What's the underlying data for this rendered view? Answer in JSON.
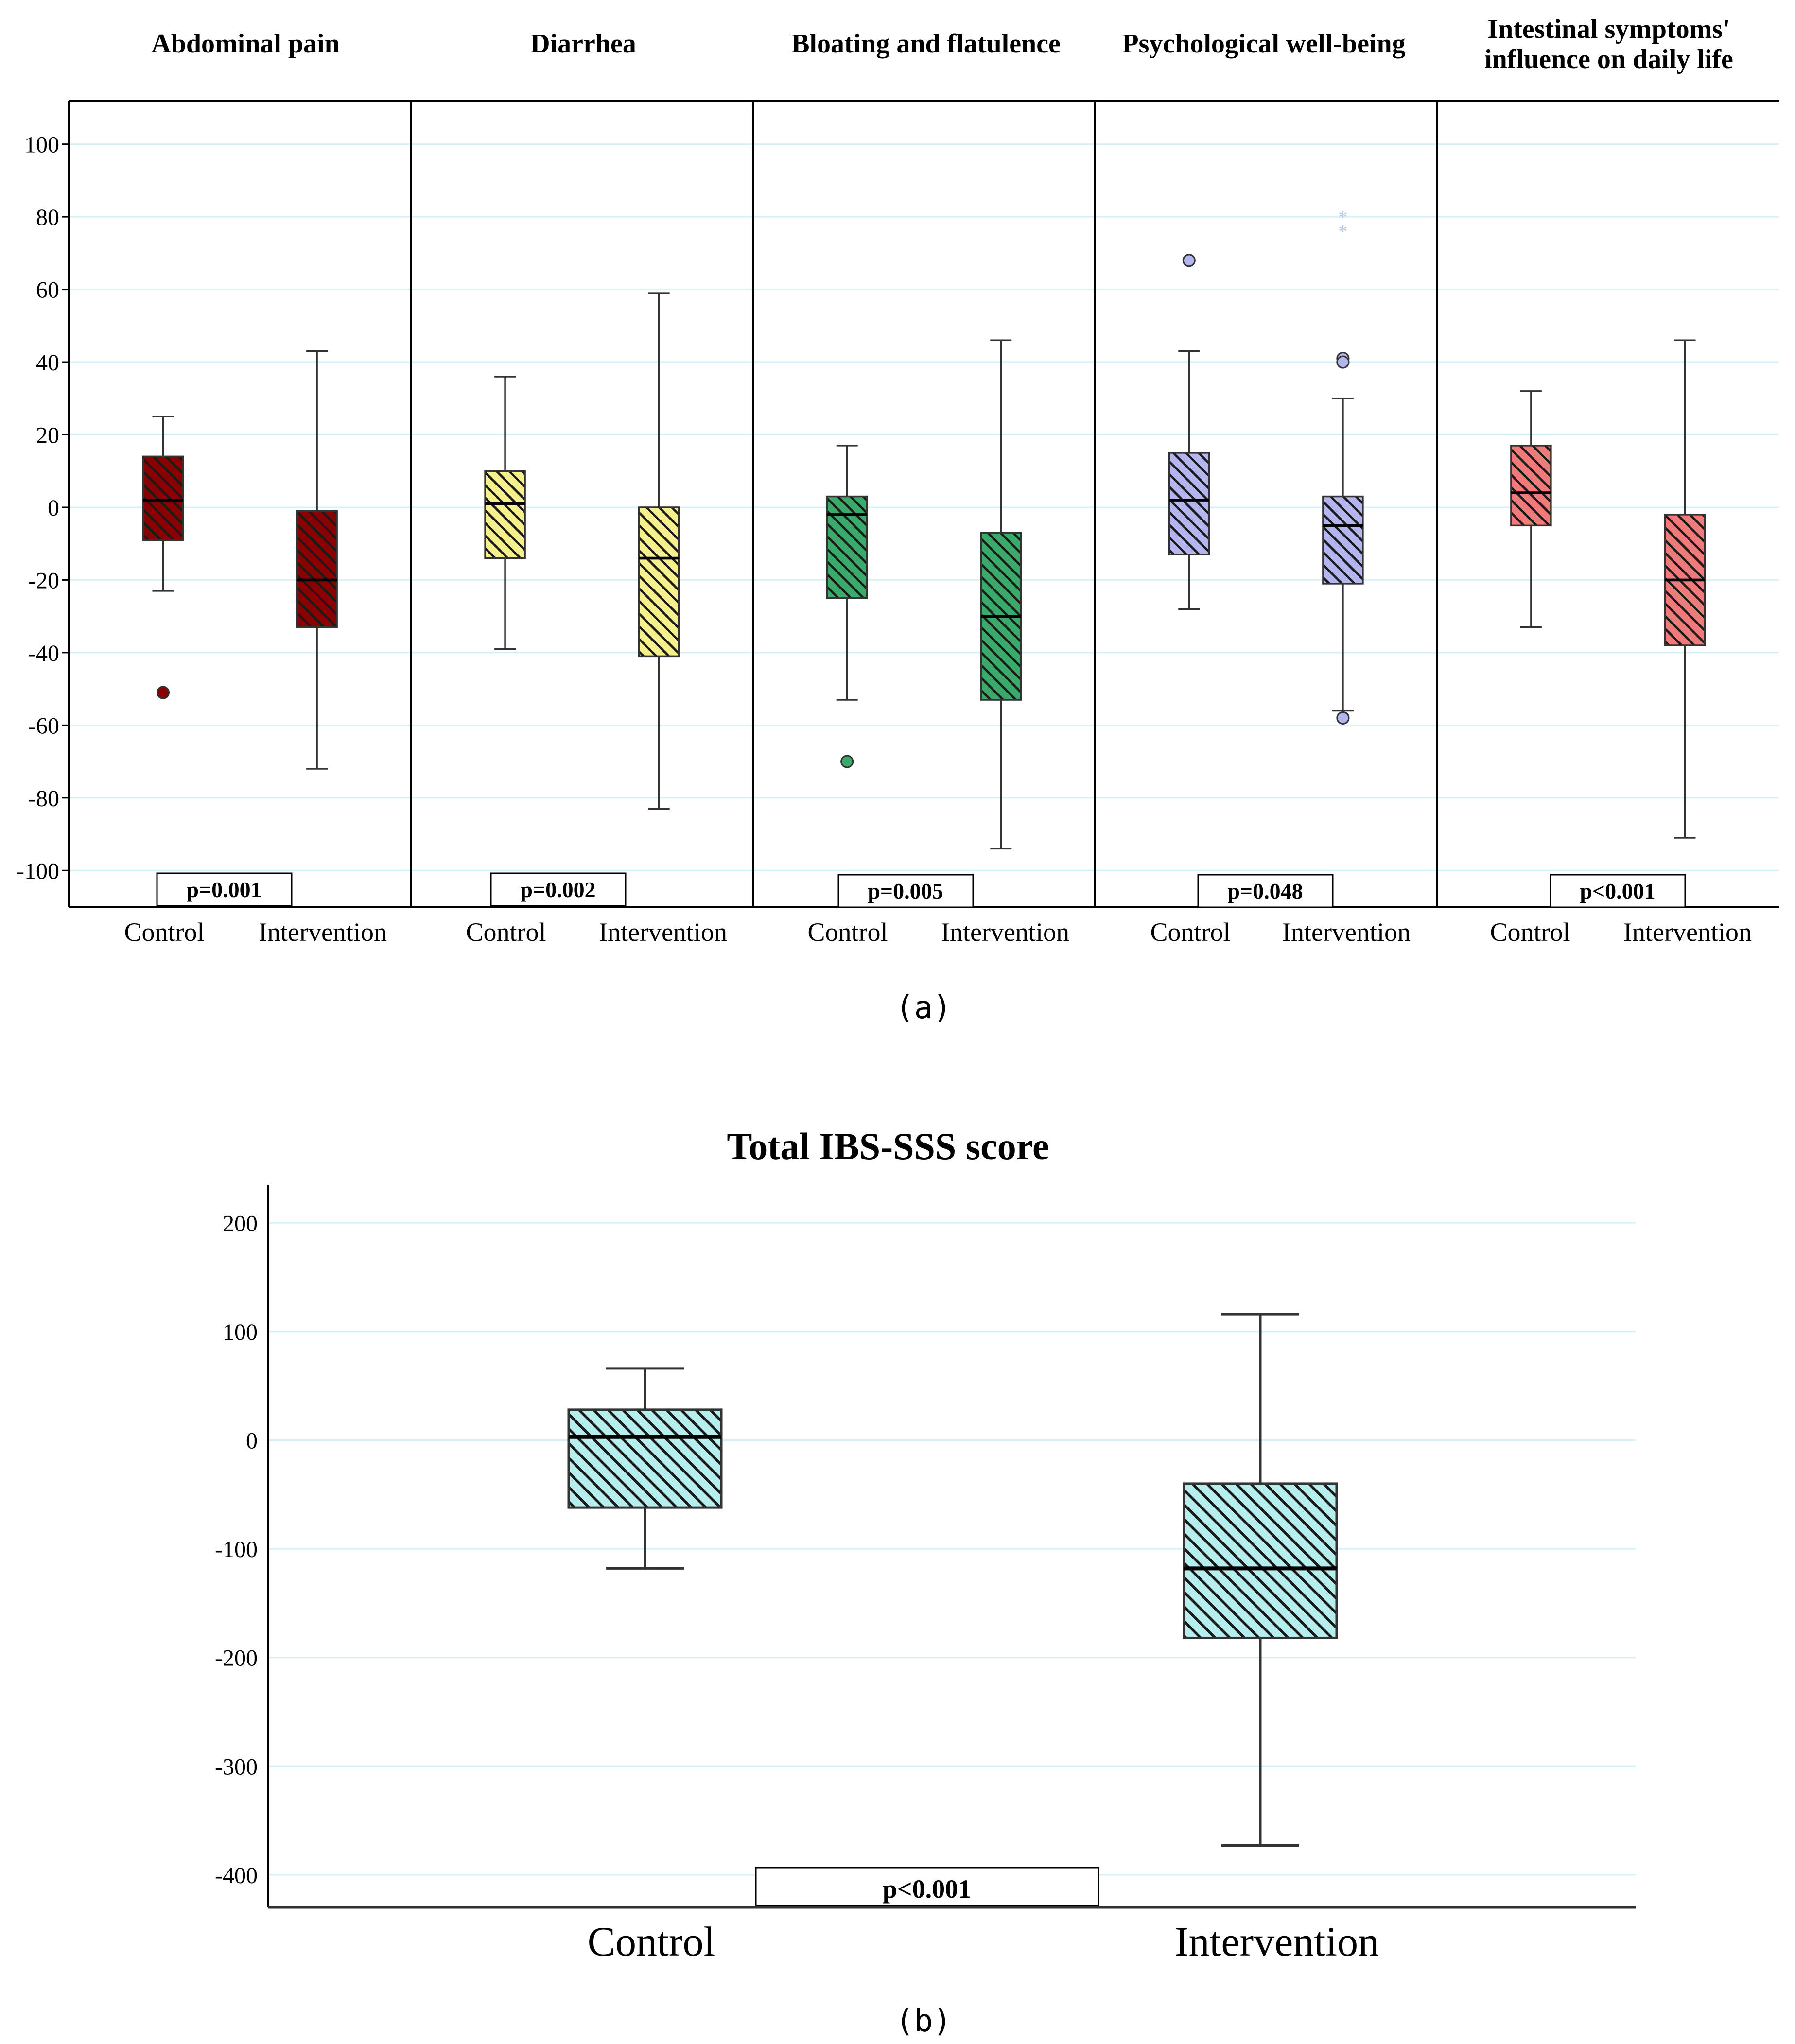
{
  "chart_data": [
    {
      "type": "boxplot",
      "caption": "(a)",
      "ylim": [
        -110,
        112
      ],
      "yticks": [
        "100",
        "80",
        "60",
        "40",
        "20",
        "0",
        "-20",
        "-40",
        "-60",
        "-80",
        "-100"
      ],
      "grid": true,
      "categories": [
        "Control",
        "Intervention"
      ],
      "panels": [
        {
          "title": [
            "Abdominal pain"
          ],
          "color": "#8b0000",
          "p_value": "p=0.001",
          "groups": [
            {
              "name": "Control",
              "min": -23,
              "q1": -9,
              "median": 2,
              "q3": 14,
              "max": 25,
              "outliers": [
                {
                  "value": -51,
                  "marker": "circle"
                }
              ]
            },
            {
              "name": "Intervention",
              "min": -72,
              "q1": -33,
              "median": -20,
              "q3": -1,
              "max": 43,
              "outliers": []
            }
          ]
        },
        {
          "title": [
            "Diarrhea"
          ],
          "color": "#f5f08c",
          "p_value": "p=0.002",
          "groups": [
            {
              "name": "Control",
              "min": -39,
              "q1": -14,
              "median": 1,
              "q3": 10,
              "max": 36,
              "outliers": []
            },
            {
              "name": "Intervention",
              "min": -83,
              "q1": -41,
              "median": -14,
              "q3": 0,
              "max": 59,
              "outliers": []
            }
          ]
        },
        {
          "title": [
            "Bloating and flatulence"
          ],
          "color": "#3aaa6a",
          "p_value": "p=0.005",
          "groups": [
            {
              "name": "Control",
              "min": -53,
              "q1": -25,
              "median": -2,
              "q3": 3,
              "max": 17,
              "outliers": [
                {
                  "value": -70,
                  "marker": "circle"
                }
              ]
            },
            {
              "name": "Intervention",
              "min": -94,
              "q1": -53,
              "median": -30,
              "q3": -7,
              "max": 46,
              "outliers": []
            }
          ]
        },
        {
          "title": [
            "Psychological well-being"
          ],
          "color": "#b4b4ee",
          "p_value": "p=0.048",
          "groups": [
            {
              "name": "Control",
              "min": -28,
              "q1": -13,
              "median": 2,
              "q3": 15,
              "max": 43,
              "outliers": [
                {
                  "value": 68,
                  "marker": "circle"
                }
              ]
            },
            {
              "name": "Intervention",
              "min": -56,
              "q1": -21,
              "median": -5,
              "q3": 3,
              "max": 30,
              "outliers": [
                {
                  "value": 41,
                  "marker": "circle"
                },
                {
                  "value": 40,
                  "marker": "circle"
                },
                {
                  "value": -58,
                  "marker": "circle"
                },
                {
                  "value": 80,
                  "marker": "star"
                },
                {
                  "value": 76,
                  "marker": "star"
                }
              ]
            }
          ]
        },
        {
          "title": [
            "Intestinal symptoms'",
            "influence on daily life"
          ],
          "color": "#f07a7a",
          "p_value": "p<0.001",
          "groups": [
            {
              "name": "Control",
              "min": -33,
              "q1": -5,
              "median": 4,
              "q3": 17,
              "max": 32,
              "outliers": []
            },
            {
              "name": "Intervention",
              "min": -91,
              "q1": -38,
              "median": -20,
              "q3": -2,
              "max": 46,
              "outliers": []
            }
          ]
        }
      ]
    },
    {
      "type": "boxplot",
      "caption": "(b)",
      "title": "Total IBS-SSS score",
      "ylim": [
        -430,
        235
      ],
      "yticks": [
        "200",
        "100",
        "0",
        "-100",
        "-200",
        "-300",
        "-400"
      ],
      "grid": true,
      "color": "#b6eeee",
      "p_value": "p<0.001",
      "groups": [
        {
          "name": "Control",
          "min": -118,
          "q1": -62,
          "median": 3,
          "q3": 28,
          "max": 66,
          "outliers": []
        },
        {
          "name": "Intervention",
          "min": -373,
          "q1": -182,
          "median": -118,
          "q3": -40,
          "max": 116,
          "outliers": []
        }
      ]
    }
  ]
}
